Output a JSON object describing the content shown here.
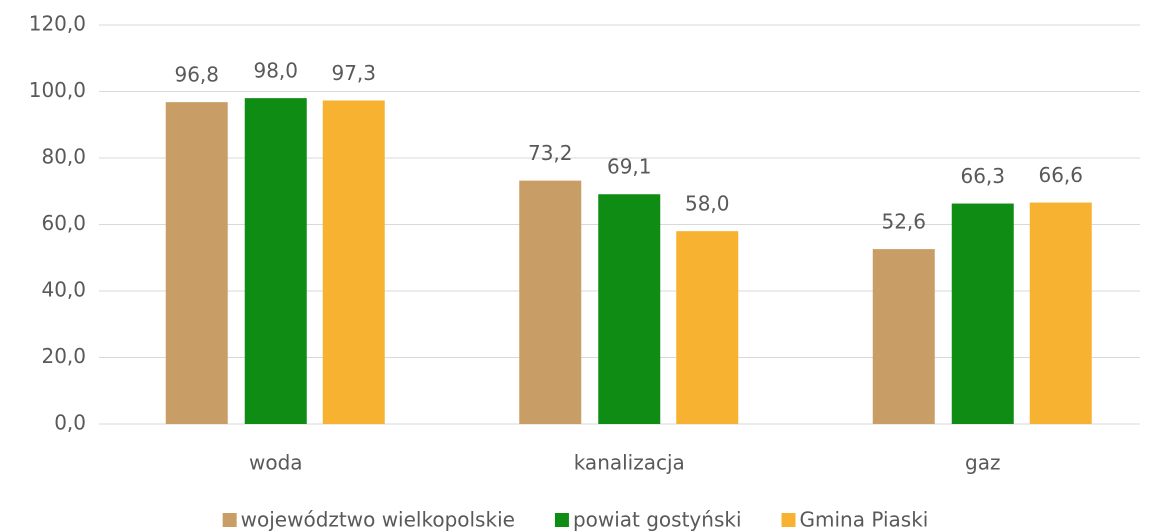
{
  "chart_data": {
    "type": "bar",
    "categories": [
      "woda",
      "kanalizacja",
      "gaz"
    ],
    "series": [
      {
        "name": "województwo wielkopolskie",
        "color": "#c99e66",
        "values": [
          96.8,
          73.2,
          52.6
        ],
        "value_labels": [
          "96,8",
          "73,2",
          "52,6"
        ]
      },
      {
        "name": "powiat gostyński",
        "color": "#0f8c14",
        "values": [
          98.0,
          69.1,
          66.3
        ],
        "value_labels": [
          "98,0",
          "69,1",
          "66,3"
        ]
      },
      {
        "name": "Gmina Piaski",
        "color": "#f7b232",
        "values": [
          97.3,
          58.0,
          66.6
        ],
        "value_labels": [
          "97,3",
          "58,0",
          "66,6"
        ]
      }
    ],
    "ylim": [
      0,
      120
    ],
    "yticks": [
      {
        "value": 0,
        "label": "0,0"
      },
      {
        "value": 20,
        "label": "20,0"
      },
      {
        "value": 40,
        "label": "40,0"
      },
      {
        "value": 60,
        "label": "60,0"
      },
      {
        "value": 80,
        "label": "80,0"
      },
      {
        "value": 100,
        "label": "100,0"
      },
      {
        "value": 120,
        "label": "120,0"
      }
    ],
    "grid": true,
    "legend": "bottom"
  }
}
